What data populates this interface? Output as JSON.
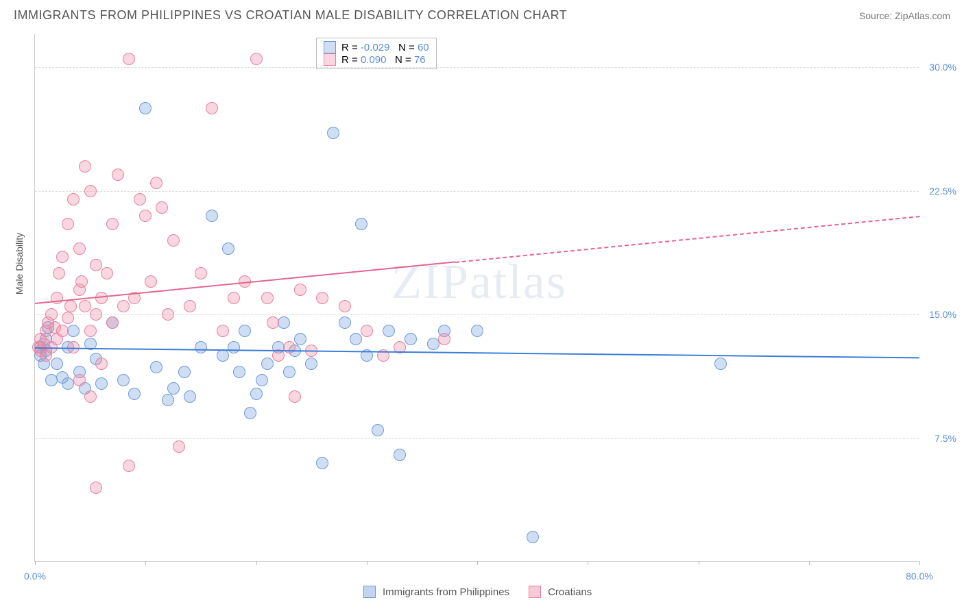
{
  "title": "IMMIGRANTS FROM PHILIPPINES VS CROATIAN MALE DISABILITY CORRELATION CHART",
  "source": "Source: ZipAtlas.com",
  "ylabel": "Male Disability",
  "watermark": "ZIPatlas",
  "xlim": [
    0,
    80
  ],
  "ylim": [
    0,
    32
  ],
  "xtick_positions": [
    0,
    10,
    20,
    30,
    40,
    50,
    60,
    70,
    80
  ],
  "xtick_labels": {
    "0": "0.0%",
    "80": "80.0%"
  },
  "ytick_positions": [
    7.5,
    15.0,
    22.5,
    30.0
  ],
  "ytick_labels": [
    "7.5%",
    "15.0%",
    "22.5%",
    "30.0%"
  ],
  "grid_color": "#dddddd",
  "background_color": "#ffffff",
  "axis_color": "#cccccc",
  "label_color": "#5b8fd6",
  "series": [
    {
      "name": "Immigrants from Philippines",
      "color_fill": "rgba(120,160,220,0.35)",
      "color_stroke": "#6a9bd8",
      "marker_radius": 9,
      "R": "-0.029",
      "N": "60",
      "trend": {
        "y_at_x0": 13.0,
        "y_at_x80": 12.4,
        "solid_to_x": 80,
        "color": "#3b7dd8",
        "width": 2.5
      },
      "points": [
        [
          0.5,
          13.0
        ],
        [
          0.5,
          12.5
        ],
        [
          0.8,
          12.0
        ],
        [
          1.0,
          13.5
        ],
        [
          1.0,
          12.8
        ],
        [
          1.2,
          14.2
        ],
        [
          1.5,
          11.0
        ],
        [
          2.0,
          12.0
        ],
        [
          2.5,
          11.2
        ],
        [
          3.0,
          13.0
        ],
        [
          3.0,
          10.8
        ],
        [
          3.5,
          14.0
        ],
        [
          4.0,
          11.5
        ],
        [
          4.5,
          10.5
        ],
        [
          5.0,
          13.2
        ],
        [
          5.5,
          12.3
        ],
        [
          6.0,
          10.8
        ],
        [
          7.0,
          14.5
        ],
        [
          8.0,
          11.0
        ],
        [
          9.0,
          10.2
        ],
        [
          10.0,
          27.5
        ],
        [
          11.0,
          11.8
        ],
        [
          12.0,
          9.8
        ],
        [
          12.5,
          10.5
        ],
        [
          13.5,
          11.5
        ],
        [
          14.0,
          10.0
        ],
        [
          15.0,
          13.0
        ],
        [
          16.0,
          21.0
        ],
        [
          17.0,
          12.5
        ],
        [
          17.5,
          19.0
        ],
        [
          18.0,
          13.0
        ],
        [
          18.5,
          11.5
        ],
        [
          19.0,
          14.0
        ],
        [
          19.5,
          9.0
        ],
        [
          20.0,
          10.2
        ],
        [
          20.5,
          11.0
        ],
        [
          21.0,
          12.0
        ],
        [
          22.0,
          13.0
        ],
        [
          22.5,
          14.5
        ],
        [
          23.0,
          11.5
        ],
        [
          23.5,
          12.8
        ],
        [
          24.0,
          13.5
        ],
        [
          25.0,
          12.0
        ],
        [
          26.0,
          6.0
        ],
        [
          27.0,
          26.0
        ],
        [
          28.0,
          14.5
        ],
        [
          29.0,
          13.5
        ],
        [
          29.5,
          20.5
        ],
        [
          30.0,
          12.5
        ],
        [
          31.0,
          8.0
        ],
        [
          32.0,
          14.0
        ],
        [
          33.0,
          6.5
        ],
        [
          34.0,
          13.5
        ],
        [
          36.0,
          13.2
        ],
        [
          37.0,
          14.0
        ],
        [
          40.0,
          14.0
        ],
        [
          45.0,
          1.5
        ],
        [
          62.0,
          12.0
        ]
      ]
    },
    {
      "name": "Croatians",
      "color_fill": "rgba(235,140,165,0.35)",
      "color_stroke": "#e6809f",
      "marker_radius": 9,
      "R": "0.090",
      "N": "76",
      "trend": {
        "y_at_x0": 15.7,
        "y_at_x80": 21.0,
        "solid_to_x": 38,
        "color": "#e6648c",
        "width": 2
      },
      "points": [
        [
          0.3,
          13.0
        ],
        [
          0.5,
          12.8
        ],
        [
          0.5,
          13.5
        ],
        [
          0.8,
          13.2
        ],
        [
          1.0,
          12.5
        ],
        [
          1.0,
          14.0
        ],
        [
          1.2,
          14.5
        ],
        [
          1.5,
          13.0
        ],
        [
          1.5,
          15.0
        ],
        [
          1.8,
          14.2
        ],
        [
          2.0,
          13.5
        ],
        [
          2.0,
          16.0
        ],
        [
          2.2,
          17.5
        ],
        [
          2.5,
          14.0
        ],
        [
          2.5,
          18.5
        ],
        [
          3.0,
          14.8
        ],
        [
          3.0,
          20.5
        ],
        [
          3.2,
          15.5
        ],
        [
          3.5,
          22.0
        ],
        [
          3.5,
          13.0
        ],
        [
          4.0,
          16.5
        ],
        [
          4.0,
          19.0
        ],
        [
          4.2,
          17.0
        ],
        [
          4.5,
          15.5
        ],
        [
          4.5,
          24.0
        ],
        [
          5.0,
          14.0
        ],
        [
          5.0,
          22.5
        ],
        [
          5.5,
          18.0
        ],
        [
          5.5,
          15.0
        ],
        [
          6.0,
          16.0
        ],
        [
          6.0,
          12.0
        ],
        [
          6.5,
          17.5
        ],
        [
          7.0,
          20.5
        ],
        [
          7.0,
          14.5
        ],
        [
          7.5,
          23.5
        ],
        [
          8.0,
          15.5
        ],
        [
          8.5,
          30.5
        ],
        [
          9.0,
          16.0
        ],
        [
          9.5,
          22.0
        ],
        [
          10.0,
          21.0
        ],
        [
          10.5,
          17.0
        ],
        [
          11.0,
          23.0
        ],
        [
          11.5,
          21.5
        ],
        [
          12.0,
          15.0
        ],
        [
          12.5,
          19.5
        ],
        [
          4.0,
          11.0
        ],
        [
          5.0,
          10.0
        ],
        [
          5.5,
          4.5
        ],
        [
          8.5,
          5.8
        ],
        [
          13.0,
          7.0
        ],
        [
          14.0,
          15.5
        ],
        [
          15.0,
          17.5
        ],
        [
          16.0,
          27.5
        ],
        [
          17.0,
          14.0
        ],
        [
          18.0,
          16.0
        ],
        [
          19.0,
          17.0
        ],
        [
          20.0,
          30.5
        ],
        [
          21.0,
          16.0
        ],
        [
          21.5,
          14.5
        ],
        [
          22.0,
          12.5
        ],
        [
          23.0,
          13.0
        ],
        [
          24.0,
          16.5
        ],
        [
          23.5,
          10.0
        ],
        [
          25.0,
          12.8
        ],
        [
          26.0,
          16.0
        ],
        [
          28.0,
          15.5
        ],
        [
          30.0,
          14.0
        ],
        [
          31.5,
          12.5
        ],
        [
          33.0,
          13.0
        ],
        [
          37.0,
          13.5
        ]
      ]
    }
  ],
  "legend_top_labels": {
    "R": "R =",
    "N": "N ="
  },
  "legend_bottom": [
    {
      "label": "Immigrants from Philippines",
      "fill": "rgba(120,160,220,0.45)",
      "stroke": "#6a9bd8"
    },
    {
      "label": "Croatians",
      "fill": "rgba(235,140,165,0.45)",
      "stroke": "#e6809f"
    }
  ]
}
